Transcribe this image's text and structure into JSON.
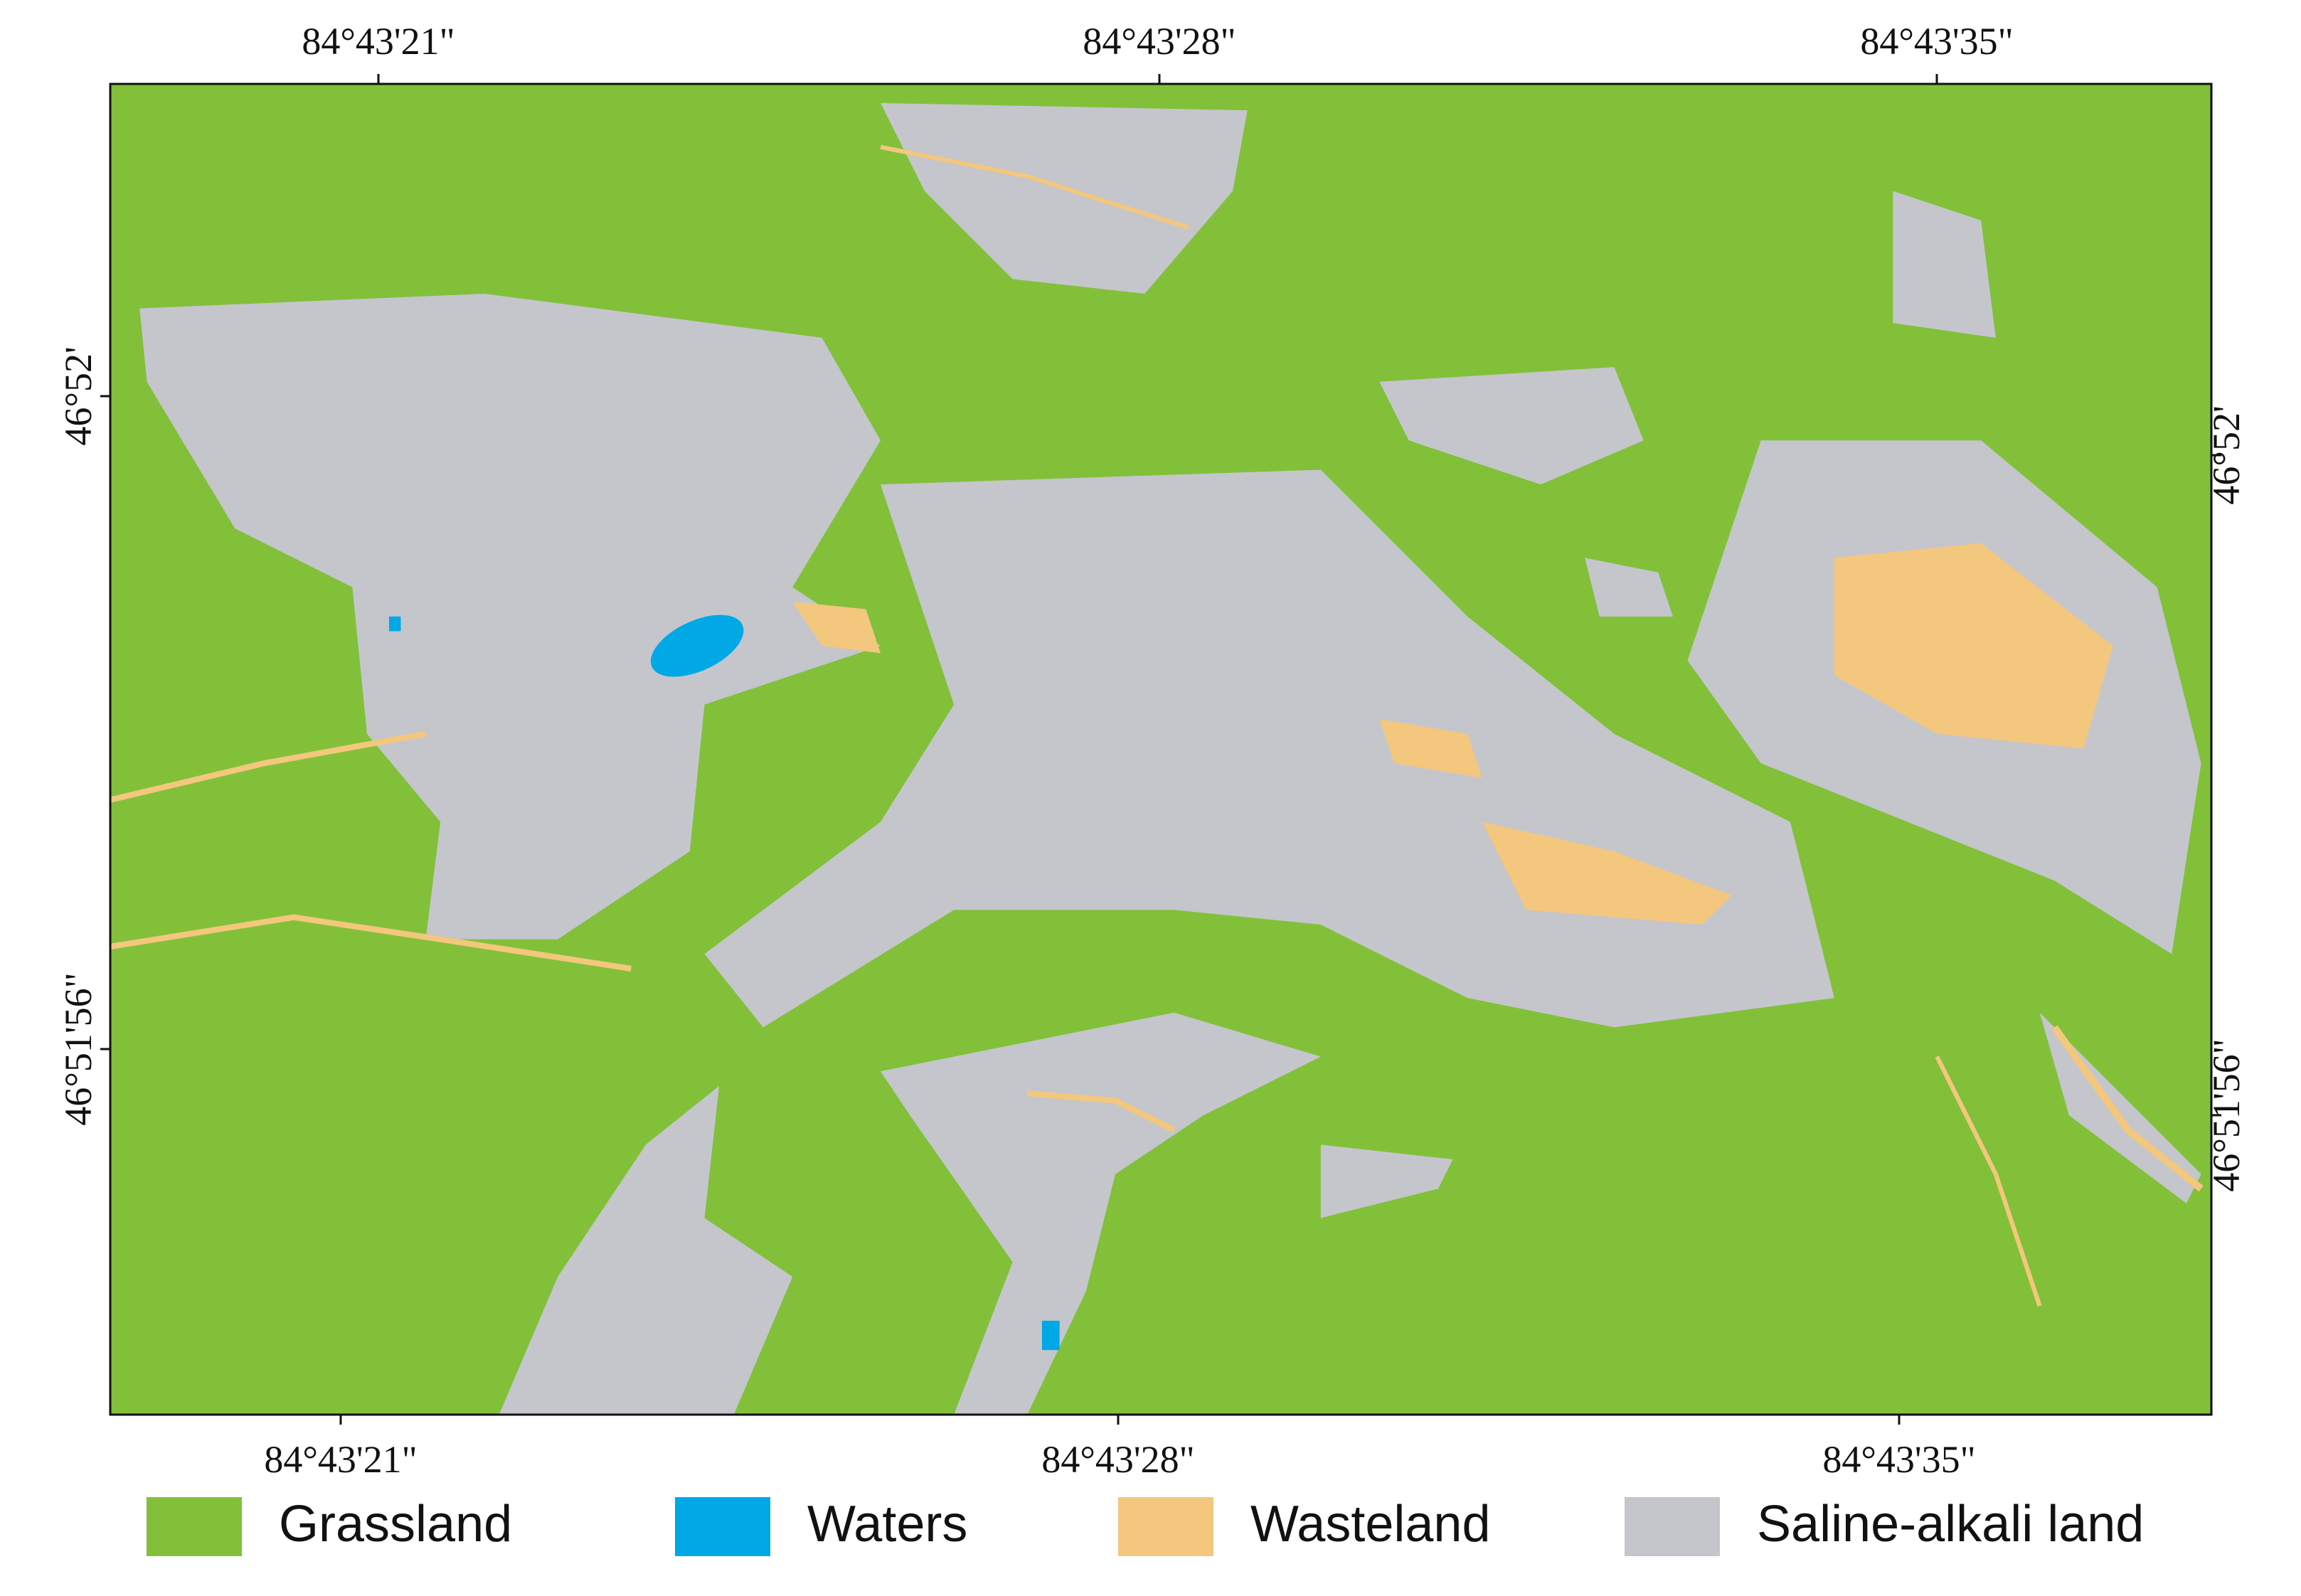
{
  "map": {
    "top_labels": [
      "84°43'21\"",
      "84°43'28\"",
      "84°43'35\""
    ],
    "bottom_labels": [
      "84°43'21\"",
      "84°43'28\"",
      "84°43'35\""
    ],
    "left_labels": [
      "46°52'",
      "46°51'56\""
    ],
    "right_labels": [
      "46°52'",
      "46°51'56\""
    ],
    "legend": [
      {
        "label": "Grassland",
        "color": "#82c03a"
      },
      {
        "label": "Waters",
        "color": "#00a8e6"
      },
      {
        "label": "Wasteland",
        "color": "#f3c77d"
      },
      {
        "label": "Saline-alkali land",
        "color": "#c4c6cc"
      }
    ]
  }
}
